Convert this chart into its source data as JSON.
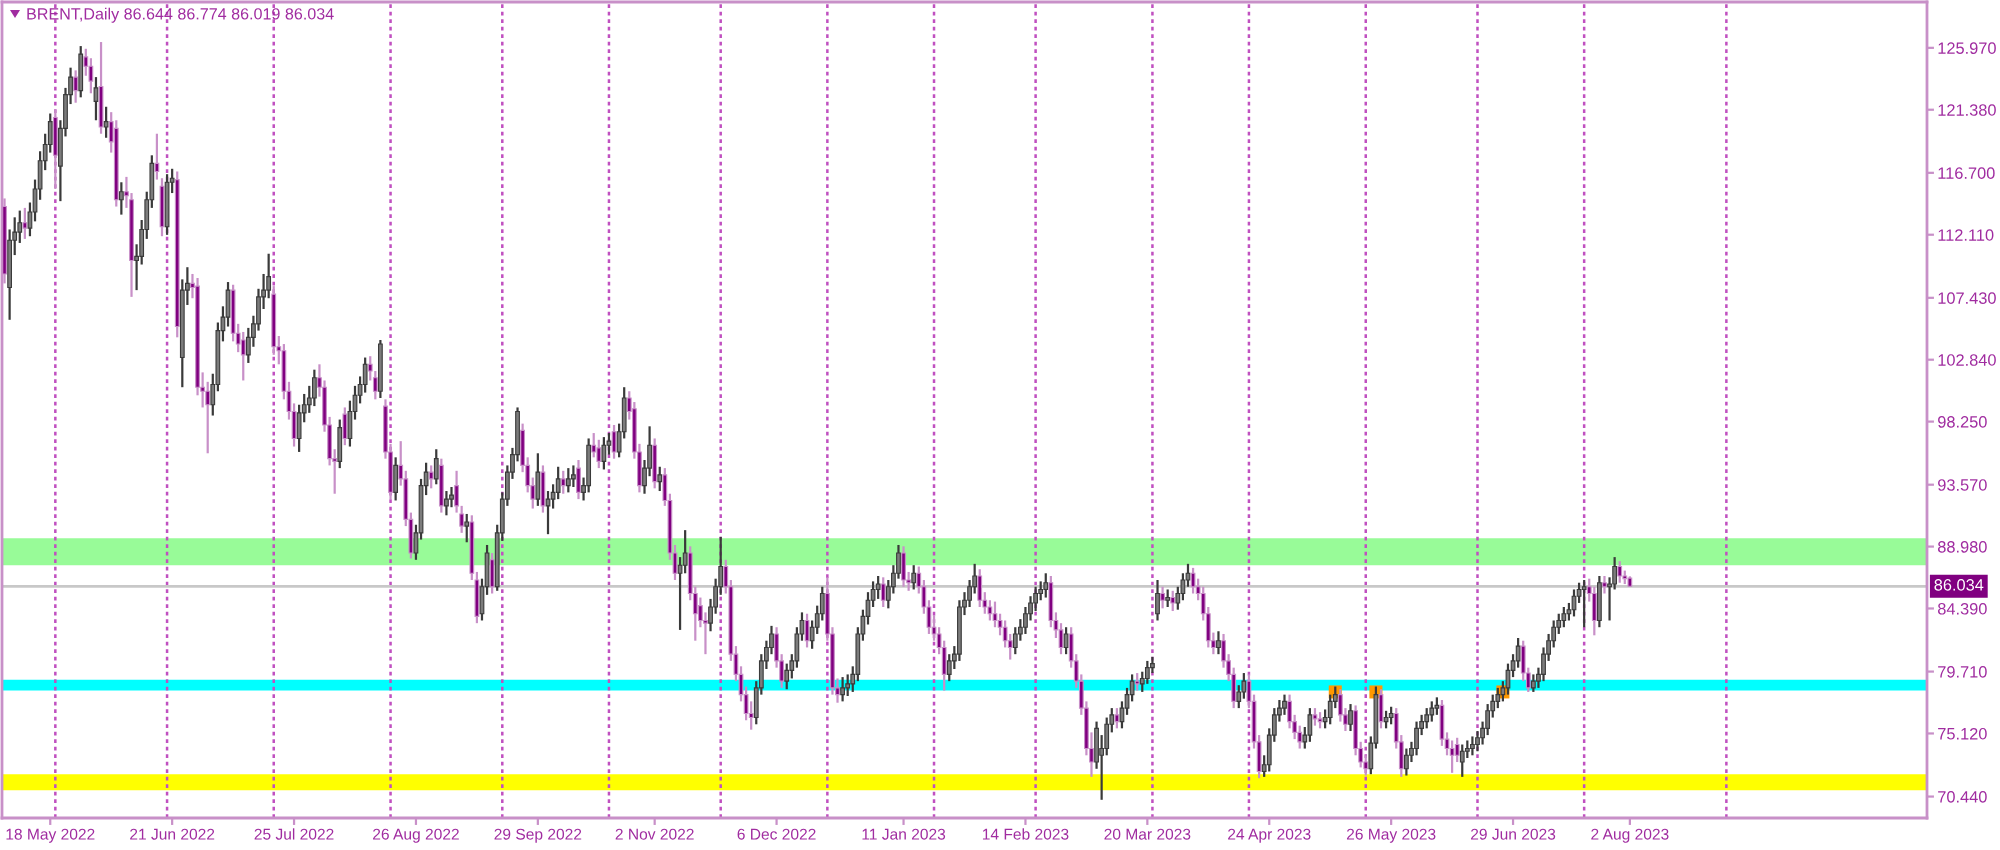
{
  "chart_data": {
    "type": "candlestick",
    "title": "BRENT,Daily 86.644 86.774 86.019 86.034",
    "ylim": [
      68.85,
      129.37
    ],
    "categories": [
      null,
      null,
      null,
      null,
      null,
      null,
      null,
      null,
      null,
      "18 May 2022",
      null,
      null,
      null,
      null,
      null,
      null,
      null,
      null,
      null,
      null,
      null,
      null,
      null,
      null,
      null,
      null,
      null,
      null,
      null,
      null,
      null,
      null,
      null,
      "21 Jun 2022",
      null,
      null,
      null,
      null,
      null,
      null,
      null,
      null,
      null,
      null,
      null,
      null,
      null,
      null,
      null,
      null,
      null,
      null,
      null,
      null,
      null,
      null,
      null,
      "25 Jul 2022",
      null,
      null,
      null,
      null,
      null,
      null,
      null,
      null,
      null,
      null,
      null,
      null,
      null,
      null,
      null,
      null,
      null,
      null,
      null,
      null,
      null,
      null,
      null,
      "26 Aug 2022",
      null,
      null,
      null,
      null,
      null,
      null,
      null,
      null,
      null,
      null,
      null,
      null,
      null,
      null,
      null,
      null,
      null,
      null,
      null,
      null,
      null,
      null,
      null,
      "29 Sep 2022",
      null,
      null,
      null,
      null,
      null,
      null,
      null,
      null,
      null,
      null,
      null,
      null,
      null,
      null,
      null,
      null,
      null,
      null,
      null,
      null,
      null,
      null,
      "2 Nov 2022",
      null,
      null,
      null,
      null,
      null,
      null,
      null,
      null,
      null,
      null,
      null,
      null,
      null,
      null,
      null,
      null,
      null,
      null,
      null,
      null,
      null,
      null,
      null,
      "6 Dec 2022",
      null,
      null,
      null,
      null,
      null,
      null,
      null,
      null,
      null,
      null,
      null,
      null,
      null,
      null,
      null,
      null,
      null,
      null,
      null,
      null,
      null,
      null,
      null,
      null,
      "11 Jan 2023",
      null,
      null,
      null,
      null,
      null,
      null,
      null,
      null,
      null,
      null,
      null,
      null,
      null,
      null,
      null,
      null,
      null,
      null,
      null,
      null,
      null,
      null,
      null,
      "14 Feb 2023",
      null,
      null,
      null,
      null,
      null,
      null,
      null,
      null,
      null,
      null,
      null,
      null,
      null,
      null,
      null,
      null,
      null,
      null,
      null,
      null,
      null,
      null,
      null,
      "20 Mar 2023",
      null,
      null,
      null,
      null,
      null,
      null,
      null,
      null,
      null,
      null,
      null,
      null,
      null,
      null,
      null,
      null,
      null,
      null,
      null,
      null,
      null,
      null,
      null,
      "24 Apr 2023",
      null,
      null,
      null,
      null,
      null,
      null,
      null,
      null,
      null,
      null,
      null,
      null,
      null,
      null,
      null,
      null,
      null,
      null,
      null,
      null,
      null,
      null,
      null,
      "26 May 2023",
      null,
      null,
      null,
      null,
      null,
      null,
      null,
      null,
      null,
      null,
      null,
      null,
      null,
      null,
      null,
      null,
      null,
      null,
      null,
      null,
      null,
      null,
      null,
      "29 Jun 2023",
      null,
      null,
      null,
      null,
      null,
      null,
      null,
      null,
      null,
      null,
      null,
      null,
      null,
      null,
      null,
      null,
      null,
      null,
      null,
      null,
      null,
      null,
      "2 Aug 2023",
      null,
      null,
      null,
      null,
      null,
      null,
      null,
      null,
      null,
      null,
      null,
      null,
      null,
      null,
      null,
      null,
      null,
      null,
      null,
      null,
      null,
      null,
      null,
      null,
      null,
      null,
      null,
      null,
      null,
      null,
      null,
      null,
      null,
      null,
      null,
      null,
      null,
      null,
      null,
      null,
      null,
      null,
      null,
      null,
      null,
      null,
      null,
      null,
      null,
      null,
      null,
      null,
      null,
      null,
      null,
      null,
      null,
      null
    ],
    "yticks": [
      {
        "value": 70.44,
        "label": "70.440"
      },
      {
        "value": 75.12,
        "label": "75.120"
      },
      {
        "value": 79.71,
        "label": "79.710"
      },
      {
        "value": 84.39,
        "label": "84.390"
      },
      {
        "value": 88.98,
        "label": "88.980"
      },
      {
        "value": 93.57,
        "label": "93.570"
      },
      {
        "value": 98.25,
        "label": "98.250"
      },
      {
        "value": 102.84,
        "label": "102.840"
      },
      {
        "value": 107.43,
        "label": "107.430"
      },
      {
        "value": 112.11,
        "label": "112.110"
      },
      {
        "value": 116.7,
        "label": "116.700"
      },
      {
        "value": 121.38,
        "label": "121.380"
      },
      {
        "value": 125.97,
        "label": "125.970"
      }
    ],
    "bands": [
      {
        "axis": "y",
        "from": 87.6,
        "to": 89.6,
        "color": "#98fb98"
      },
      {
        "axis": "y",
        "from": 78.3,
        "to": 79.1,
        "color": "#00ffff"
      },
      {
        "axis": "y",
        "from": 70.9,
        "to": 72.1,
        "color": "#ffff00"
      }
    ],
    "ref_lines": [
      {
        "axis": "y",
        "value": 86.034,
        "label": "86.034",
        "color": "#c8c8c8",
        "line_style": "solid"
      }
    ],
    "series": [
      {
        "type": "scatter",
        "color": "#ff9900",
        "marker": "square",
        "values": [
          null,
          null,
          null,
          null,
          null,
          null,
          null,
          null,
          null,
          null,
          null,
          null,
          null,
          null,
          null,
          null,
          null,
          null,
          null,
          null,
          null,
          null,
          null,
          null,
          null,
          null,
          null,
          null,
          null,
          null,
          null,
          null,
          null,
          null,
          null,
          null,
          null,
          null,
          null,
          null,
          null,
          null,
          null,
          null,
          null,
          null,
          null,
          null,
          null,
          null,
          null,
          null,
          null,
          null,
          null,
          null,
          null,
          null,
          null,
          null,
          null,
          null,
          null,
          null,
          null,
          null,
          null,
          null,
          null,
          null,
          null,
          null,
          null,
          null,
          null,
          null,
          null,
          null,
          null,
          null,
          null,
          null,
          null,
          null,
          null,
          null,
          null,
          null,
          null,
          null,
          null,
          null,
          null,
          null,
          null,
          null,
          null,
          null,
          null,
          null,
          null,
          null,
          null,
          null,
          null,
          null,
          null,
          null,
          null,
          null,
          null,
          null,
          null,
          null,
          null,
          null,
          null,
          null,
          null,
          null,
          null,
          null,
          null,
          null,
          null,
          null,
          null,
          null,
          null,
          null,
          null,
          null,
          null,
          null,
          null,
          null,
          null,
          null,
          null,
          null,
          null,
          null,
          null,
          null,
          null,
          null,
          null,
          null,
          null,
          null,
          null,
          null,
          null,
          null,
          null,
          null,
          null,
          null,
          null,
          null,
          null,
          null,
          null,
          null,
          null,
          null,
          null,
          null,
          null,
          null,
          null,
          null,
          null,
          null,
          null,
          null,
          null,
          null,
          null,
          null,
          null,
          null,
          null,
          null,
          null,
          null,
          null,
          null,
          null,
          null,
          null,
          null,
          null,
          null,
          null,
          null,
          null,
          null,
          null,
          null,
          null,
          null,
          null,
          null,
          null,
          null,
          null,
          null,
          null,
          null,
          null,
          null,
          null,
          null,
          null,
          null,
          null,
          null,
          null,
          null,
          null,
          null,
          null,
          null,
          null,
          null,
          null,
          null,
          null,
          null,
          null,
          null,
          null,
          null,
          null,
          null,
          null,
          null,
          null,
          null,
          null,
          null,
          null,
          null,
          null,
          null,
          null,
          null,
          null,
          null,
          null,
          null,
          null,
          null,
          null,
          null,
          null,
          null,
          null,
          null,
          null,
          null,
          78.2,
          null,
          null,
          null,
          null,
          null,
          null,
          null,
          78.2,
          null,
          null,
          null,
          null,
          null,
          null,
          null,
          null,
          null,
          null,
          null,
          null,
          null,
          null,
          null,
          null,
          null,
          null,
          null,
          null,
          null,
          null,
          null,
          null,
          78.2,
          null,
          null,
          null,
          null,
          null,
          null,
          null,
          null,
          null,
          null,
          null,
          null,
          null,
          null,
          null,
          null,
          null,
          null,
          null,
          null,
          null,
          null,
          null,
          null,
          null,
          null,
          null,
          null,
          null,
          null,
          null,
          null,
          null,
          null,
          null,
          null,
          null,
          null,
          null,
          null,
          null,
          null,
          null,
          null,
          null,
          null,
          null,
          null,
          null,
          null,
          null,
          null,
          null,
          null,
          null,
          null,
          null,
          null,
          null,
          null,
          null,
          null,
          null,
          null,
          null,
          null,
          null,
          null,
          null,
          null,
          null,
          null,
          null,
          null,
          null,
          null,
          null,
          null,
          null,
          null,
          null,
          null,
          null
        ]
      }
    ],
    "ohlc": [
      [
        114.2,
        114.8,
        108.5,
        109.2
      ],
      [
        108.2,
        112.5,
        105.8,
        111.7
      ],
      [
        111.7,
        113.4,
        110.6,
        112.3
      ],
      [
        112.3,
        113.9,
        111.5,
        113.0
      ],
      [
        113.0,
        114.1,
        111.8,
        112.6
      ],
      [
        112.6,
        114.5,
        112.0,
        113.8
      ],
      [
        113.8,
        116.2,
        113.1,
        115.5
      ],
      [
        115.5,
        118.3,
        114.7,
        117.6
      ],
      [
        117.6,
        119.6,
        116.9,
        118.8
      ],
      [
        118.8,
        121.1,
        118.2,
        120.5
      ],
      [
        120.8,
        121.4,
        115.5,
        118.0
      ],
      [
        117.2,
        120.6,
        114.6,
        120.0
      ],
      [
        120.0,
        123.0,
        119.4,
        122.5
      ],
      [
        122.5,
        124.5,
        121.8,
        123.8
      ],
      [
        123.8,
        124.3,
        121.9,
        122.8
      ],
      [
        122.8,
        126.1,
        122.3,
        125.5
      ],
      [
        125.3,
        125.9,
        123.9,
        124.6
      ],
      [
        124.6,
        125.2,
        122.6,
        123.5
      ],
      [
        122.0,
        123.8,
        120.6,
        123.0
      ],
      [
        123.1,
        126.4,
        119.6,
        120.1
      ],
      [
        120.1,
        121.6,
        119.3,
        120.5
      ],
      [
        120.5,
        121.2,
        118.2,
        119.0
      ],
      [
        120.0,
        120.6,
        114.2,
        114.7
      ],
      [
        114.7,
        116.0,
        113.6,
        115.3
      ],
      [
        115.3,
        116.4,
        114.1,
        115.0
      ],
      [
        114.7,
        115.2,
        107.5,
        110.2
      ],
      [
        110.2,
        111.4,
        108.0,
        110.5
      ],
      [
        110.5,
        113.2,
        109.9,
        112.5
      ],
      [
        112.5,
        115.3,
        111.8,
        114.7
      ],
      [
        114.7,
        118.0,
        114.1,
        117.4
      ],
      [
        117.4,
        119.6,
        116.2,
        116.8
      ],
      [
        115.7,
        116.3,
        112.0,
        112.7
      ],
      [
        112.7,
        116.6,
        112.1,
        116.0
      ],
      [
        116.0,
        117.0,
        115.2,
        116.3
      ],
      [
        116.2,
        116.8,
        104.5,
        105.3
      ],
      [
        103.0,
        108.8,
        100.8,
        108.0
      ],
      [
        108.0,
        109.7,
        106.9,
        108.5
      ],
      [
        108.5,
        109.2,
        107.4,
        108.2
      ],
      [
        108.3,
        108.9,
        100.2,
        100.8
      ],
      [
        100.8,
        101.9,
        99.3,
        100.5
      ],
      [
        100.5,
        101.2,
        95.9,
        99.5
      ],
      [
        99.5,
        101.8,
        98.7,
        101.0
      ],
      [
        101.0,
        105.6,
        100.5,
        105.0
      ],
      [
        105.0,
        106.8,
        104.2,
        106.0
      ],
      [
        106.0,
        108.6,
        105.3,
        108.0
      ],
      [
        108.0,
        108.4,
        104.2,
        104.8
      ],
      [
        104.8,
        105.5,
        103.4,
        104.0
      ],
      [
        104.3,
        104.9,
        101.3,
        103.2
      ],
      [
        103.2,
        105.2,
        102.6,
        104.5
      ],
      [
        104.5,
        106.1,
        103.8,
        105.5
      ],
      [
        105.5,
        108.1,
        105.0,
        107.5
      ],
      [
        107.5,
        109.2,
        106.6,
        108.0
      ],
      [
        108.0,
        110.7,
        107.4,
        109.0
      ],
      [
        107.7,
        108.3,
        103.2,
        103.8
      ],
      [
        103.8,
        104.6,
        102.5,
        103.5
      ],
      [
        103.5,
        104.0,
        99.9,
        100.5
      ],
      [
        100.5,
        101.2,
        98.4,
        99.0
      ],
      [
        99.0,
        99.6,
        96.4,
        97.0
      ],
      [
        97.0,
        99.5,
        96.0,
        98.9
      ],
      [
        98.9,
        100.3,
        98.2,
        99.5
      ],
      [
        99.5,
        100.9,
        98.9,
        100.0
      ],
      [
        100.0,
        102.1,
        99.4,
        101.5
      ],
      [
        101.5,
        102.5,
        100.1,
        100.8
      ],
      [
        100.8,
        101.3,
        97.5,
        98.0
      ],
      [
        98.0,
        98.6,
        95.0,
        95.5
      ],
      [
        95.5,
        96.2,
        92.9,
        95.3
      ],
      [
        95.3,
        98.4,
        94.8,
        97.8
      ],
      [
        98.8,
        99.3,
        96.5,
        97.0
      ],
      [
        97.0,
        99.8,
        96.4,
        99.0
      ],
      [
        99.0,
        100.9,
        98.4,
        100.2
      ],
      [
        100.2,
        101.6,
        99.6,
        101.0
      ],
      [
        101.0,
        103.0,
        100.4,
        102.5
      ],
      [
        102.5,
        103.1,
        101.3,
        102.0
      ],
      [
        101.5,
        102.0,
        99.9,
        100.5
      ],
      [
        100.5,
        104.3,
        100.0,
        104.0
      ],
      [
        99.4,
        99.9,
        95.5,
        96.0
      ],
      [
        96.0,
        96.6,
        92.5,
        93.0
      ],
      [
        93.0,
        95.6,
        92.4,
        95.0
      ],
      [
        95.0,
        96.8,
        93.5,
        94.0
      ],
      [
        94.0,
        94.6,
        90.5,
        91.0
      ],
      [
        91.0,
        91.5,
        88.1,
        88.5
      ],
      [
        88.5,
        90.6,
        88.0,
        90.0
      ],
      [
        90.0,
        94.0,
        89.5,
        93.5
      ],
      [
        93.5,
        95.2,
        92.8,
        94.5
      ],
      [
        94.5,
        95.0,
        93.3,
        94.0
      ],
      [
        94.0,
        96.2,
        93.6,
        95.5
      ],
      [
        95.0,
        95.5,
        91.5,
        92.0
      ],
      [
        92.0,
        93.1,
        91.3,
        92.5
      ],
      [
        92.5,
        93.4,
        91.9,
        92.8
      ],
      [
        93.5,
        94.6,
        91.5,
        92.0
      ],
      [
        91.4,
        92.0,
        90.0,
        90.5
      ],
      [
        90.5,
        91.4,
        89.3,
        90.8
      ],
      [
        90.8,
        91.3,
        86.5,
        87.0
      ],
      [
        86.5,
        87.1,
        83.3,
        83.8
      ],
      [
        84.0,
        86.6,
        83.5,
        86.0
      ],
      [
        86.0,
        89.1,
        85.4,
        88.5
      ],
      [
        88.0,
        88.5,
        85.5,
        86.0
      ],
      [
        86.0,
        90.6,
        85.7,
        90.0
      ],
      [
        90.0,
        93.0,
        89.4,
        92.5
      ],
      [
        92.5,
        95.0,
        92.0,
        94.5
      ],
      [
        94.5,
        96.3,
        94.0,
        95.8
      ],
      [
        95.8,
        99.3,
        95.3,
        99.0
      ],
      [
        97.6,
        98.1,
        94.5,
        95.0
      ],
      [
        95.0,
        95.6,
        93.0,
        93.5
      ],
      [
        93.5,
        94.1,
        91.8,
        92.5
      ],
      [
        92.5,
        95.9,
        92.0,
        94.5
      ],
      [
        94.5,
        95.0,
        91.5,
        92.0
      ],
      [
        92.0,
        93.1,
        89.9,
        92.5
      ],
      [
        92.5,
        93.6,
        91.8,
        93.0
      ],
      [
        93.0,
        94.9,
        92.5,
        94.0
      ],
      [
        94.0,
        94.6,
        92.9,
        93.5
      ],
      [
        93.5,
        94.8,
        93.0,
        94.0
      ],
      [
        94.0,
        95.0,
        93.4,
        94.3
      ],
      [
        94.8,
        95.4,
        92.5,
        93.0
      ],
      [
        93.0,
        94.1,
        92.4,
        93.5
      ],
      [
        93.5,
        97.0,
        93.0,
        96.5
      ],
      [
        96.5,
        97.4,
        95.6,
        96.0
      ],
      [
        96.3,
        96.9,
        94.8,
        95.3
      ],
      [
        95.3,
        97.1,
        94.7,
        96.5
      ],
      [
        96.5,
        97.4,
        95.8,
        96.8
      ],
      [
        97.5,
        98.0,
        95.5,
        96.0
      ],
      [
        96.0,
        98.1,
        95.6,
        97.5
      ],
      [
        97.5,
        100.8,
        97.0,
        100.0
      ],
      [
        100.0,
        100.5,
        98.4,
        99.0
      ],
      [
        99.2,
        99.7,
        95.5,
        96.0
      ],
      [
        96.0,
        96.6,
        93.0,
        93.5
      ],
      [
        93.5,
        95.4,
        92.9,
        94.8
      ],
      [
        94.8,
        97.9,
        94.2,
        96.5
      ],
      [
        96.5,
        97.0,
        93.3,
        93.8
      ],
      [
        93.8,
        94.9,
        93.1,
        94.3
      ],
      [
        94.3,
        94.8,
        92.0,
        92.4
      ],
      [
        92.4,
        92.9,
        88.0,
        88.5
      ],
      [
        88.5,
        89.1,
        86.5,
        87.0
      ],
      [
        87.0,
        88.2,
        82.8,
        87.6
      ],
      [
        87.6,
        90.2,
        87.0,
        88.5
      ],
      [
        88.5,
        89.0,
        85.0,
        85.5
      ],
      [
        85.5,
        86.0,
        82.0,
        84.0
      ],
      [
        84.6,
        85.2,
        83.0,
        83.5
      ],
      [
        83.5,
        84.1,
        81.0,
        83.3
      ],
      [
        83.3,
        85.1,
        82.7,
        84.5
      ],
      [
        84.5,
        86.6,
        84.0,
        86.0
      ],
      [
        86.0,
        89.7,
        85.4,
        87.5
      ],
      [
        87.5,
        88.0,
        85.5,
        86.0
      ],
      [
        86.0,
        86.5,
        80.5,
        81.0
      ],
      [
        81.0,
        81.6,
        79.0,
        79.5
      ],
      [
        79.5,
        80.1,
        77.5,
        78.0
      ],
      [
        78.0,
        78.6,
        76.1,
        76.6
      ],
      [
        76.6,
        77.5,
        75.4,
        76.3
      ],
      [
        76.3,
        79.0,
        75.8,
        78.5
      ],
      [
        78.5,
        81.0,
        78.0,
        80.5
      ],
      [
        80.5,
        82.0,
        79.9,
        81.5
      ],
      [
        81.5,
        83.1,
        81.0,
        82.5
      ],
      [
        82.5,
        83.0,
        80.0,
        80.5
      ],
      [
        80.5,
        81.0,
        78.5,
        79.0
      ],
      [
        79.0,
        80.3,
        78.4,
        79.8
      ],
      [
        79.8,
        81.0,
        79.2,
        80.5
      ],
      [
        80.5,
        83.0,
        80.0,
        82.5
      ],
      [
        82.5,
        84.1,
        82.0,
        83.5
      ],
      [
        83.5,
        84.0,
        81.5,
        82.0
      ],
      [
        82.0,
        83.5,
        81.4,
        83.0
      ],
      [
        83.0,
        84.6,
        82.5,
        84.0
      ],
      [
        84.0,
        86.0,
        83.5,
        85.5
      ],
      [
        85.5,
        86.7,
        82.0,
        82.5
      ],
      [
        82.5,
        83.0,
        78.0,
        78.5
      ],
      [
        78.5,
        79.2,
        77.4,
        78.0
      ],
      [
        78.0,
        79.3,
        77.5,
        78.5
      ],
      [
        78.5,
        79.5,
        77.9,
        78.8
      ],
      [
        78.8,
        80.1,
        78.2,
        79.5
      ],
      [
        79.5,
        83.0,
        79.0,
        82.5
      ],
      [
        82.5,
        84.3,
        82.0,
        83.8
      ],
      [
        83.8,
        85.6,
        83.2,
        85.0
      ],
      [
        85.0,
        86.4,
        84.5,
        85.8
      ],
      [
        85.8,
        86.8,
        85.1,
        86.2
      ],
      [
        86.2,
        86.7,
        84.5,
        85.0
      ],
      [
        85.0,
        86.5,
        84.4,
        86.0
      ],
      [
        86.0,
        87.6,
        85.5,
        87.0
      ],
      [
        87.0,
        89.1,
        86.6,
        88.5
      ],
      [
        88.5,
        89.0,
        86.0,
        86.5
      ],
      [
        86.5,
        87.1,
        85.7,
        86.3
      ],
      [
        86.3,
        87.6,
        85.8,
        87.0
      ],
      [
        87.0,
        87.5,
        85.5,
        86.0
      ],
      [
        86.0,
        86.5,
        84.0,
        84.5
      ],
      [
        84.5,
        85.0,
        82.5,
        83.0
      ],
      [
        83.0,
        83.9,
        82.0,
        82.5
      ],
      [
        82.5,
        83.0,
        81.0,
        81.5
      ],
      [
        81.5,
        82.0,
        78.3,
        79.5
      ],
      [
        79.5,
        81.0,
        79.0,
        80.5
      ],
      [
        80.5,
        81.6,
        79.9,
        81.0
      ],
      [
        81.0,
        85.0,
        80.5,
        84.5
      ],
      [
        84.5,
        85.6,
        83.9,
        85.0
      ],
      [
        85.0,
        86.5,
        84.5,
        86.0
      ],
      [
        86.0,
        87.7,
        85.5,
        86.8
      ],
      [
        86.8,
        87.3,
        84.5,
        85.0
      ],
      [
        85.0,
        85.6,
        84.0,
        84.5
      ],
      [
        84.5,
        85.0,
        83.5,
        84.0
      ],
      [
        84.0,
        84.9,
        83.0,
        83.5
      ],
      [
        83.5,
        84.0,
        82.4,
        83.0
      ],
      [
        83.0,
        83.5,
        81.5,
        82.0
      ],
      [
        82.0,
        82.5,
        80.6,
        81.5
      ],
      [
        81.5,
        83.0,
        81.0,
        82.5
      ],
      [
        82.5,
        83.6,
        82.0,
        83.0
      ],
      [
        83.0,
        84.5,
        82.5,
        84.0
      ],
      [
        84.0,
        85.3,
        83.5,
        84.8
      ],
      [
        84.8,
        86.0,
        84.2,
        85.5
      ],
      [
        85.5,
        86.4,
        85.0,
        85.8
      ],
      [
        85.8,
        87.0,
        85.2,
        86.3
      ],
      [
        86.3,
        86.8,
        83.0,
        83.5
      ],
      [
        83.5,
        84.1,
        82.2,
        82.8
      ],
      [
        82.8,
        83.3,
        81.0,
        81.5
      ],
      [
        81.5,
        83.0,
        81.0,
        82.5
      ],
      [
        82.5,
        83.0,
        80.0,
        80.5
      ],
      [
        80.5,
        81.0,
        78.5,
        79.0
      ],
      [
        79.0,
        79.5,
        76.5,
        77.0
      ],
      [
        77.0,
        77.5,
        73.5,
        74.0
      ],
      [
        74.0,
        75.2,
        71.9,
        73.0
      ],
      [
        73.0,
        76.0,
        72.5,
        75.5
      ],
      [
        73.5,
        75.0,
        70.2,
        74.0
      ],
      [
        74.0,
        76.3,
        73.5,
        75.8
      ],
      [
        75.8,
        77.0,
        75.2,
        76.5
      ],
      [
        76.5,
        77.0,
        75.5,
        76.0
      ],
      [
        76.0,
        77.5,
        75.5,
        77.0
      ],
      [
        77.0,
        78.5,
        76.5,
        78.0
      ],
      [
        78.0,
        79.5,
        77.5,
        79.0
      ],
      [
        79.0,
        79.6,
        78.3,
        78.8
      ],
      [
        78.8,
        79.7,
        78.2,
        79.2
      ],
      [
        79.2,
        80.5,
        78.8,
        80.0
      ],
      [
        80.0,
        80.8,
        79.6,
        80.3
      ],
      [
        84.0,
        86.5,
        83.5,
        85.5
      ],
      [
        85.5,
        86.0,
        84.4,
        85.0
      ],
      [
        85.0,
        85.8,
        84.5,
        85.2
      ],
      [
        85.2,
        85.7,
        84.2,
        84.8
      ],
      [
        84.8,
        86.0,
        84.3,
        85.5
      ],
      [
        85.5,
        87.0,
        85.0,
        86.5
      ],
      [
        86.5,
        87.7,
        86.0,
        87.0
      ],
      [
        87.0,
        87.4,
        85.5,
        86.0
      ],
      [
        86.0,
        86.6,
        85.0,
        85.5
      ],
      [
        85.5,
        86.0,
        83.5,
        84.0
      ],
      [
        84.0,
        84.5,
        81.5,
        82.0
      ],
      [
        82.0,
        82.6,
        81.0,
        81.5
      ],
      [
        81.5,
        82.7,
        81.0,
        82.0
      ],
      [
        82.0,
        82.5,
        80.0,
        80.5
      ],
      [
        80.5,
        81.0,
        79.0,
        79.5
      ],
      [
        79.5,
        80.0,
        77.0,
        77.5
      ],
      [
        77.5,
        78.7,
        77.0,
        78.2
      ],
      [
        78.2,
        79.6,
        77.7,
        79.0
      ],
      [
        79.0,
        79.5,
        77.0,
        77.5
      ],
      [
        77.5,
        78.0,
        74.0,
        74.5
      ],
      [
        74.5,
        75.0,
        71.8,
        72.3
      ],
      [
        72.3,
        73.5,
        71.9,
        72.8
      ],
      [
        72.8,
        75.5,
        72.3,
        75.0
      ],
      [
        75.0,
        77.0,
        74.5,
        76.5
      ],
      [
        76.5,
        77.6,
        76.0,
        77.0
      ],
      [
        77.0,
        78.0,
        76.5,
        77.5
      ],
      [
        77.5,
        78.0,
        75.5,
        76.0
      ],
      [
        76.0,
        76.5,
        74.7,
        75.2
      ],
      [
        75.2,
        75.7,
        74.0,
        74.5
      ],
      [
        74.5,
        75.6,
        74.0,
        75.0
      ],
      [
        75.0,
        77.0,
        74.5,
        76.5
      ],
      [
        76.5,
        77.0,
        75.7,
        76.2
      ],
      [
        76.2,
        76.7,
        75.5,
        76.0
      ],
      [
        76.0,
        76.9,
        75.5,
        76.3
      ],
      [
        76.3,
        78.0,
        75.8,
        77.5
      ],
      [
        77.5,
        78.6,
        77.0,
        78.0
      ],
      [
        78.0,
        78.4,
        76.0,
        76.5
      ],
      [
        76.5,
        77.0,
        75.3,
        75.8
      ],
      [
        75.8,
        77.3,
        75.3,
        76.8
      ],
      [
        76.8,
        77.2,
        73.5,
        74.0
      ],
      [
        74.0,
        74.5,
        72.6,
        73.0
      ],
      [
        73.0,
        73.5,
        72.0,
        72.5
      ],
      [
        72.5,
        74.9,
        72.1,
        74.4
      ],
      [
        74.4,
        78.6,
        74.0,
        78.0
      ],
      [
        78.0,
        78.4,
        75.5,
        76.0
      ],
      [
        76.0,
        76.8,
        75.5,
        76.3
      ],
      [
        76.3,
        77.1,
        75.8,
        76.6
      ],
      [
        76.6,
        77.0,
        74.0,
        74.5
      ],
      [
        74.5,
        75.0,
        71.9,
        72.5
      ],
      [
        72.5,
        74.0,
        72.0,
        73.5
      ],
      [
        73.5,
        74.5,
        73.0,
        74.0
      ],
      [
        74.0,
        76.0,
        73.5,
        75.5
      ],
      [
        75.5,
        76.5,
        75.0,
        76.0
      ],
      [
        76.0,
        77.0,
        75.5,
        76.5
      ],
      [
        76.5,
        77.5,
        76.0,
        77.0
      ],
      [
        77.0,
        77.8,
        76.5,
        77.2
      ],
      [
        77.2,
        77.6,
        74.2,
        74.7
      ],
      [
        74.7,
        75.2,
        73.5,
        74.0
      ],
      [
        74.0,
        74.6,
        72.2,
        73.5
      ],
      [
        74.3,
        74.8,
        73.0,
        73.5
      ],
      [
        73.0,
        74.3,
        71.9,
        73.8
      ],
      [
        73.8,
        74.6,
        73.3,
        74.0
      ],
      [
        74.0,
        74.9,
        73.5,
        74.3
      ],
      [
        74.3,
        75.3,
        73.8,
        74.8
      ],
      [
        74.8,
        76.0,
        74.3,
        75.5
      ],
      [
        75.5,
        77.3,
        75.0,
        76.8
      ],
      [
        76.8,
        78.0,
        76.3,
        77.5
      ],
      [
        77.5,
        78.5,
        77.0,
        78.0
      ],
      [
        78.0,
        79.0,
        77.5,
        78.5
      ],
      [
        78.5,
        80.3,
        78.0,
        79.8
      ],
      [
        79.8,
        81.0,
        79.3,
        80.5
      ],
      [
        80.5,
        82.2,
        80.0,
        81.6
      ],
      [
        81.6,
        82.0,
        79.0,
        79.6
      ],
      [
        79.6,
        80.0,
        78.2,
        78.5
      ],
      [
        78.5,
        79.5,
        78.2,
        79.0
      ],
      [
        79.0,
        80.0,
        78.5,
        79.5
      ],
      [
        79.5,
        81.5,
        79.0,
        81.0
      ],
      [
        81.0,
        82.5,
        80.5,
        82.0
      ],
      [
        82.0,
        83.5,
        81.5,
        83.0
      ],
      [
        83.0,
        84.0,
        82.5,
        83.5
      ],
      [
        83.5,
        84.5,
        83.0,
        84.0
      ],
      [
        84.0,
        84.8,
        83.5,
        84.3
      ],
      [
        84.3,
        85.8,
        83.8,
        85.3
      ],
      [
        85.3,
        86.3,
        84.8,
        85.8
      ],
      [
        85.8,
        86.5,
        83.0,
        86.0
      ],
      [
        86.0,
        86.6,
        84.9,
        85.5
      ],
      [
        85.5,
        86.0,
        82.4,
        83.5
      ],
      [
        83.5,
        86.8,
        83.0,
        86.3
      ],
      [
        86.3,
        86.8,
        85.5,
        86.0
      ],
      [
        86.0,
        86.7,
        83.5,
        86.2
      ],
      [
        86.2,
        88.2,
        85.8,
        87.5
      ],
      [
        87.5,
        87.9,
        86.3,
        86.8
      ],
      [
        86.8,
        87.2,
        86.2,
        86.6
      ],
      [
        86.644,
        86.774,
        86.019,
        86.034
      ],
      null,
      null,
      null,
      null,
      null,
      null,
      null,
      null,
      null,
      null,
      null,
      null,
      null,
      null,
      null,
      null,
      null,
      null,
      null,
      null,
      null,
      null,
      null,
      null,
      null,
      null,
      null,
      null,
      null,
      null,
      null,
      null,
      null,
      null,
      null,
      null,
      null,
      null,
      null,
      null,
      null,
      null,
      null,
      null,
      null,
      null,
      null,
      null,
      null,
      null,
      null,
      null,
      null,
      null,
      null,
      null,
      null,
      null
    ]
  }
}
